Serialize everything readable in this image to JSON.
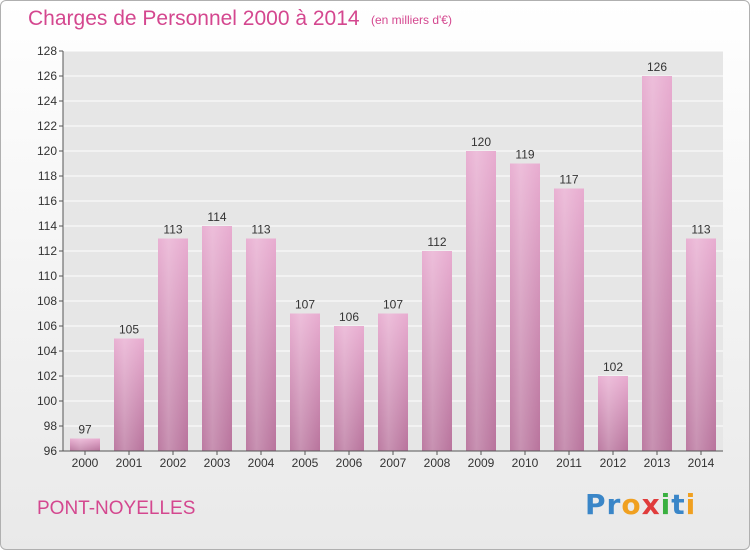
{
  "page": {
    "title": "Charges de Personnel 2000 à 2014",
    "subtitle": "(en milliers d'€)",
    "commune": "PONT-NOYELLES",
    "logo": {
      "letters": [
        "P",
        "r",
        "o",
        "x",
        "i",
        "t",
        "i"
      ],
      "colors": [
        "#3a86c8",
        "#3a86c8",
        "#f0a020",
        "#e03c3c",
        "#3ab040",
        "#3a86c8",
        "#f0a020"
      ]
    }
  },
  "chart_data": {
    "type": "bar",
    "categories": [
      "2000",
      "2001",
      "2002",
      "2003",
      "2004",
      "2005",
      "2006",
      "2007",
      "2008",
      "2009",
      "2010",
      "2011",
      "2012",
      "2013",
      "2014"
    ],
    "values": [
      97,
      105,
      113,
      114,
      113,
      107,
      106,
      107,
      112,
      120,
      119,
      117,
      102,
      126,
      113
    ],
    "data_labels": [
      "97",
      "105",
      "113",
      "114",
      "113",
      "107",
      "106",
      "107",
      "112",
      "120",
      "119",
      "117",
      "102",
      "126",
      "113"
    ],
    "ylim": [
      96,
      128
    ],
    "yticks": [
      "96",
      "98",
      "100",
      "102",
      "104",
      "106",
      "108",
      "110",
      "112",
      "114",
      "116",
      "118",
      "120",
      "122",
      "124",
      "126",
      "128"
    ],
    "grid": true,
    "bar_color": "#e3a6c8"
  }
}
